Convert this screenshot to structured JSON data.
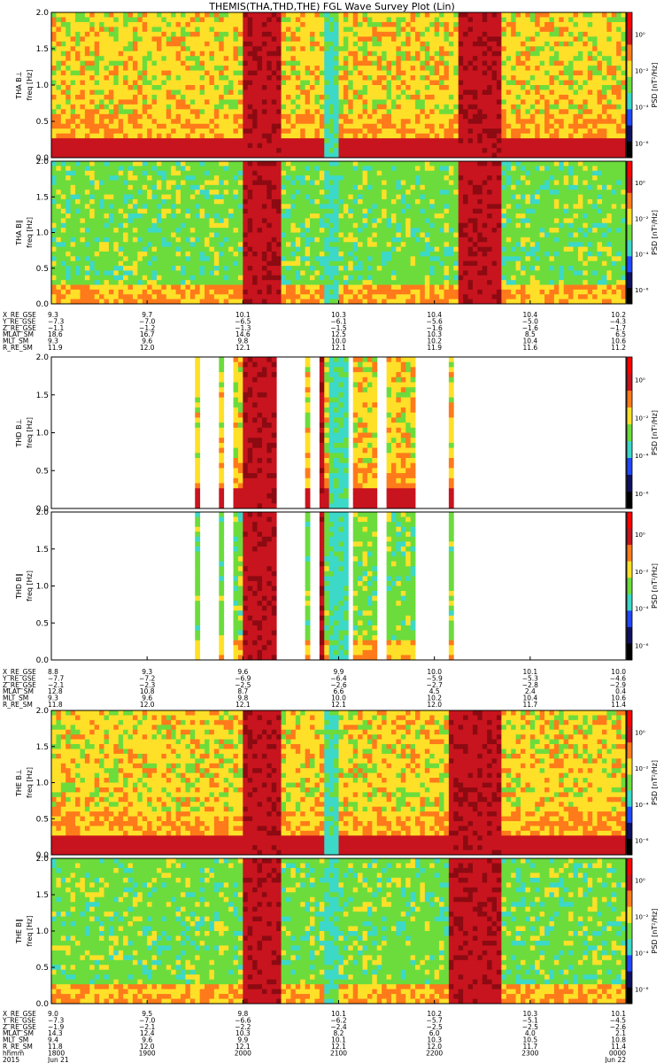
{
  "title": "THEMIS(THA,THD,THE) FGL Wave Survey Plot (Lin)",
  "colorbar_label": "PSD [nT²/Hz]",
  "colorbar_ticks": [
    "10⁰",
    "10⁻²",
    "10⁻⁴",
    "10⁻⁶"
  ],
  "panel_ylabel_freq": "freq [Hz]",
  "colors": {
    "red": "#c8141e",
    "darkred": "#8c0a12",
    "orange": "#ff7a1a",
    "yellow": "#ffe028",
    "green": "#6cdc3c",
    "cyan": "#3cd8c8",
    "blue": "#2048ff"
  },
  "chart_data": [
    {
      "type": "heatmap",
      "probe": "THA",
      "y_tick_labels": [
        "0.0",
        "0.5",
        "1.0",
        "1.5",
        "2.0"
      ],
      "ylim": [
        0,
        2.0
      ],
      "ylabel": "freq [Hz]",
      "panels": [
        {
          "name": "THA B⊥",
          "component_label": "THA B⊥"
        },
        {
          "name": "THA B∥",
          "component_label": "THA B∥"
        }
      ],
      "orbit_rows": [
        {
          "label": "X_RE_GSE",
          "values": [
            "9.3",
            "9.7",
            "10.1",
            "10.3",
            "10.4",
            "10.4",
            "10.2"
          ]
        },
        {
          "label": "Y_RE_GSE",
          "values": [
            "−7.3",
            "−7.0",
            "−6.5",
            "−6.1",
            "−5.6",
            "−5.0",
            "−4.3"
          ]
        },
        {
          "label": "Z_RE_GSE",
          "values": [
            "−1.1",
            "−1.2",
            "−1.3",
            "−1.5",
            "−1.6",
            "−1.6",
            "−1.7"
          ]
        },
        {
          "label": "MLAT_SM",
          "values": [
            "18.6",
            "16.7",
            "14.6",
            "12.5",
            "10.3",
            "8.5",
            "6.5"
          ]
        },
        {
          "label": "MLT_SM",
          "values": [
            "9.3",
            "9.6",
            "9.8",
            "10.0",
            "10.2",
            "10.4",
            "10.6"
          ]
        },
        {
          "label": "R_RE_SM",
          "values": [
            "11.9",
            "12.0",
            "12.1",
            "12.1",
            "11.9",
            "11.6",
            "11.2"
          ]
        }
      ]
    },
    {
      "type": "heatmap",
      "probe": "THD",
      "y_tick_labels": [
        "0.0",
        "0.5",
        "1.0",
        "1.5",
        "2.0"
      ],
      "ylim": [
        0,
        2.0
      ],
      "ylabel": "freq [Hz]",
      "panels": [
        {
          "name": "THD B⊥",
          "component_label": "THD B⊥"
        },
        {
          "name": "THD B∥",
          "component_label": "THD B∥"
        }
      ],
      "orbit_rows": [
        {
          "label": "X_RE_GSE",
          "values": [
            "8.8",
            "9.3",
            "9.6",
            "9.9",
            "10.0",
            "10.1",
            "10.0"
          ]
        },
        {
          "label": "Y_RE_GSE",
          "values": [
            "−7.7",
            "−7.2",
            "−6.9",
            "−6.4",
            "−5.9",
            "−5.3",
            "−4.6"
          ]
        },
        {
          "label": "Z_RE_GSE",
          "values": [
            "−2.1",
            "−2.3",
            "−2.5",
            "−2.6",
            "−2.7",
            "−2.8",
            "−2.9"
          ]
        },
        {
          "label": "MLAT_SM",
          "values": [
            "12.8",
            "10.8",
            "8.7",
            "6.6",
            "4.5",
            "2.4",
            "0.4"
          ]
        },
        {
          "label": "MLT_SM",
          "values": [
            "9.3",
            "9.6",
            "9.8",
            "10.0",
            "10.2",
            "10.4",
            "10.6"
          ]
        },
        {
          "label": "R_RE_SM",
          "values": [
            "11.8",
            "12.0",
            "12.1",
            "12.1",
            "12.0",
            "11.7",
            "11.4"
          ]
        }
      ]
    },
    {
      "type": "heatmap",
      "probe": "THE",
      "y_tick_labels": [
        "0.0",
        "0.5",
        "1.0",
        "1.5",
        "2.0"
      ],
      "ylim": [
        0,
        2.0
      ],
      "ylabel": "freq [Hz]",
      "panels": [
        {
          "name": "THE B⊥",
          "component_label": "THE B⊥"
        },
        {
          "name": "THE B∥",
          "component_label": "THE B∥"
        }
      ],
      "orbit_rows": [
        {
          "label": "X_RE_GSE",
          "values": [
            "9.0",
            "9.5",
            "9.8",
            "10.1",
            "10.2",
            "10.3",
            "10.1"
          ]
        },
        {
          "label": "Y_RE_GSE",
          "values": [
            "−7.3",
            "−7.0",
            "−6.6",
            "−6.2",
            "−5.7",
            "−5.1",
            "−4.5"
          ]
        },
        {
          "label": "Z_RE_GSE",
          "values": [
            "−1.9",
            "−2.1",
            "−2.2",
            "−2.4",
            "−2.5",
            "−2.5",
            "−2.6"
          ]
        },
        {
          "label": "MLAT_SM",
          "values": [
            "14.3",
            "12.4",
            "10.3",
            "8.2",
            "6.0",
            "4.0",
            "2.1"
          ]
        },
        {
          "label": "MLT_SM",
          "values": [
            "9.4",
            "9.6",
            "9.9",
            "10.1",
            "10.3",
            "10.5",
            "10.8"
          ]
        },
        {
          "label": "R_RE_SM",
          "values": [
            "11.8",
            "12.0",
            "12.1",
            "12.1",
            "12.0",
            "11.7",
            "11.4"
          ]
        }
      ],
      "time_axis": {
        "hhmm_label": "hhmm",
        "hhmm": [
          "1800",
          "1900",
          "2000",
          "2100",
          "2200",
          "2300",
          "0000"
        ],
        "date_label": "2015",
        "dates": [
          "Jun 21",
          "",
          "",
          "",
          "",
          "",
          "Jun 22"
        ]
      }
    }
  ]
}
